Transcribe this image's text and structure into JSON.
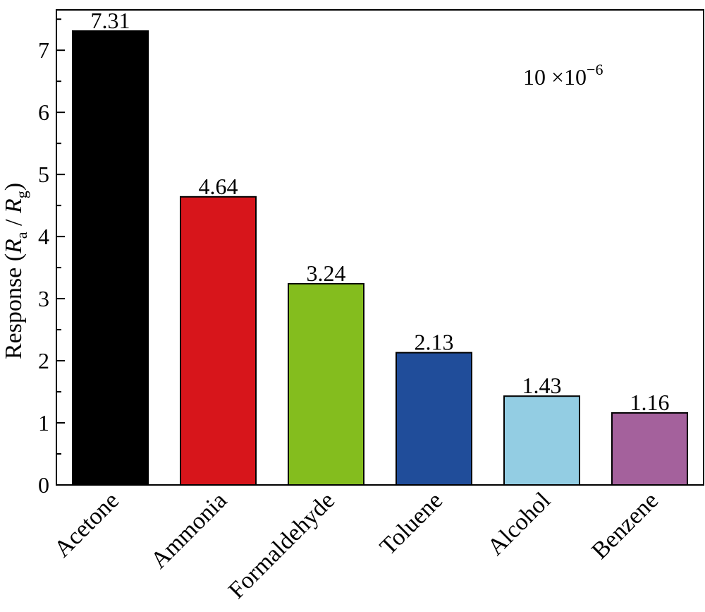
{
  "chart_data": {
    "type": "bar",
    "categories": [
      "Acetone",
      "Ammonia",
      "Formaldehyde",
      "Toluene",
      "Alcohol",
      "Benzene"
    ],
    "values": [
      7.31,
      4.64,
      3.24,
      2.13,
      1.43,
      1.16
    ],
    "data_labels": [
      "7.31",
      "4.64",
      "3.24",
      "2.13",
      "1.43",
      "1.16"
    ],
    "colors": [
      "#000000",
      "#d7151b",
      "#84bd1e",
      "#204d9a",
      "#93cde3",
      "#a4619c"
    ],
    "ylabel": {
      "prefix": "Response (",
      "var_a": "R",
      "sub_a": "a",
      "sep": " / ",
      "var_b": "R",
      "sub_b": "g",
      "suffix": ")"
    },
    "ylim": [
      0,
      7.65
    ],
    "yticks": [
      0,
      1,
      2,
      3,
      4,
      5,
      6,
      7
    ],
    "yticks_minor_step": 0.5,
    "annotation": {
      "base": "10 ×10",
      "exponent": "−6"
    },
    "grid": false,
    "legend": "none"
  }
}
